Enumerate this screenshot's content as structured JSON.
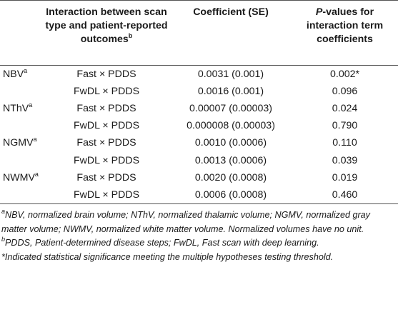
{
  "table": {
    "headers": [
      "",
      "Interaction between scan type and patient-reported outcomes",
      "Coefficient (SE)",
      "P-values for interaction term coefficients"
    ],
    "header_col1_sup": "b",
    "header_col3_italic": "P",
    "header_col3_rest": "-values for interaction term coefficients",
    "rows": [
      {
        "measure": "NBV",
        "sup": "a",
        "interaction": "Fast × PDDS",
        "coef": "0.0031 (0.001)",
        "p": "0.002*"
      },
      {
        "measure": "",
        "sup": "",
        "interaction": "FwDL × PDDS",
        "coef": "0.0016 (0.001)",
        "p": "0.096"
      },
      {
        "measure": "NThV",
        "sup": "a",
        "interaction": "Fast × PDDS",
        "coef": "0.00007 (0.00003)",
        "p": "0.024"
      },
      {
        "measure": "",
        "sup": "",
        "interaction": "FwDL × PDDS",
        "coef": "0.000008 (0.00003)",
        "p": "0.790"
      },
      {
        "measure": "NGMV",
        "sup": "a",
        "interaction": "Fast × PDDS",
        "coef": "0.0010 (0.0006)",
        "p": "0.110"
      },
      {
        "measure": "",
        "sup": "",
        "interaction": "FwDL × PDDS",
        "coef": "0.0013 (0.0006)",
        "p": "0.039"
      },
      {
        "measure": "NWMV",
        "sup": "a",
        "interaction": "Fast × PDDS",
        "coef": "0.0020 (0.0008)",
        "p": "0.019"
      },
      {
        "measure": "",
        "sup": "",
        "interaction": "FwDL × PDDS",
        "coef": "0.0006 (0.0008)",
        "p": "0.460"
      }
    ]
  },
  "footnotes": {
    "a_sup": "a",
    "a_text": "NBV, normalized brain volume; NThV, normalized thalamic volume; NGMV, normalized gray matter volume; NWMV, normalized white matter volume. Normalized volumes have no unit.",
    "b_sup": "b",
    "b_text": "PDDS, Patient-determined disease steps; FwDL, Fast scan with deep learning.",
    "star_text": "*Indicated statistical significance meeting the multiple hypotheses testing threshold."
  }
}
